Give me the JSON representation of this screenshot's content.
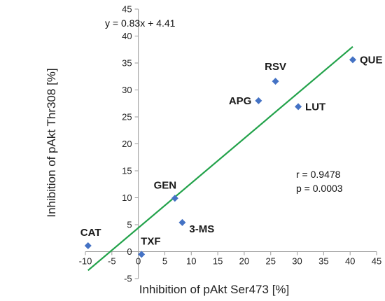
{
  "chart_data": {
    "type": "scatter",
    "title": "",
    "xlabel": "Inhibition of pAkt Ser473 [%]",
    "ylabel": "Inhibition of pAkt Thr308 [%]",
    "xlim": [
      -10,
      45
    ],
    "ylim": [
      -5,
      45
    ],
    "xticks": [
      -10,
      -5,
      0,
      5,
      10,
      15,
      20,
      25,
      30,
      35,
      40,
      45
    ],
    "yticks": [
      -5,
      0,
      5,
      10,
      15,
      20,
      25,
      30,
      35,
      40,
      45
    ],
    "grid": false,
    "series": [
      {
        "points": [
          {
            "label": "CAT",
            "x": -9.5,
            "y": 1.1
          },
          {
            "label": "TXF",
            "x": 0.6,
            "y": -0.5
          },
          {
            "label": "3-MS",
            "x": 8.3,
            "y": 5.4
          },
          {
            "label": "GEN",
            "x": 6.9,
            "y": 9.9
          },
          {
            "label": "APG",
            "x": 22.7,
            "y": 28.0
          },
          {
            "label": "RSV",
            "x": 25.9,
            "y": 31.6
          },
          {
            "label": "LUT",
            "x": 30.2,
            "y": 26.9
          },
          {
            "label": "QUE",
            "x": 40.5,
            "y": 35.6
          }
        ],
        "marker_color": "#4472c4"
      }
    ],
    "trendline": {
      "slope": 0.83,
      "intercept": 4.41,
      "x_range": [
        -9.5,
        40.5
      ],
      "color": "#22a24a",
      "equation_text": "y = 0.83x + 4.41"
    },
    "stats": {
      "r_text": "r = 0.9478",
      "p_text": "p = 0.0003"
    }
  }
}
